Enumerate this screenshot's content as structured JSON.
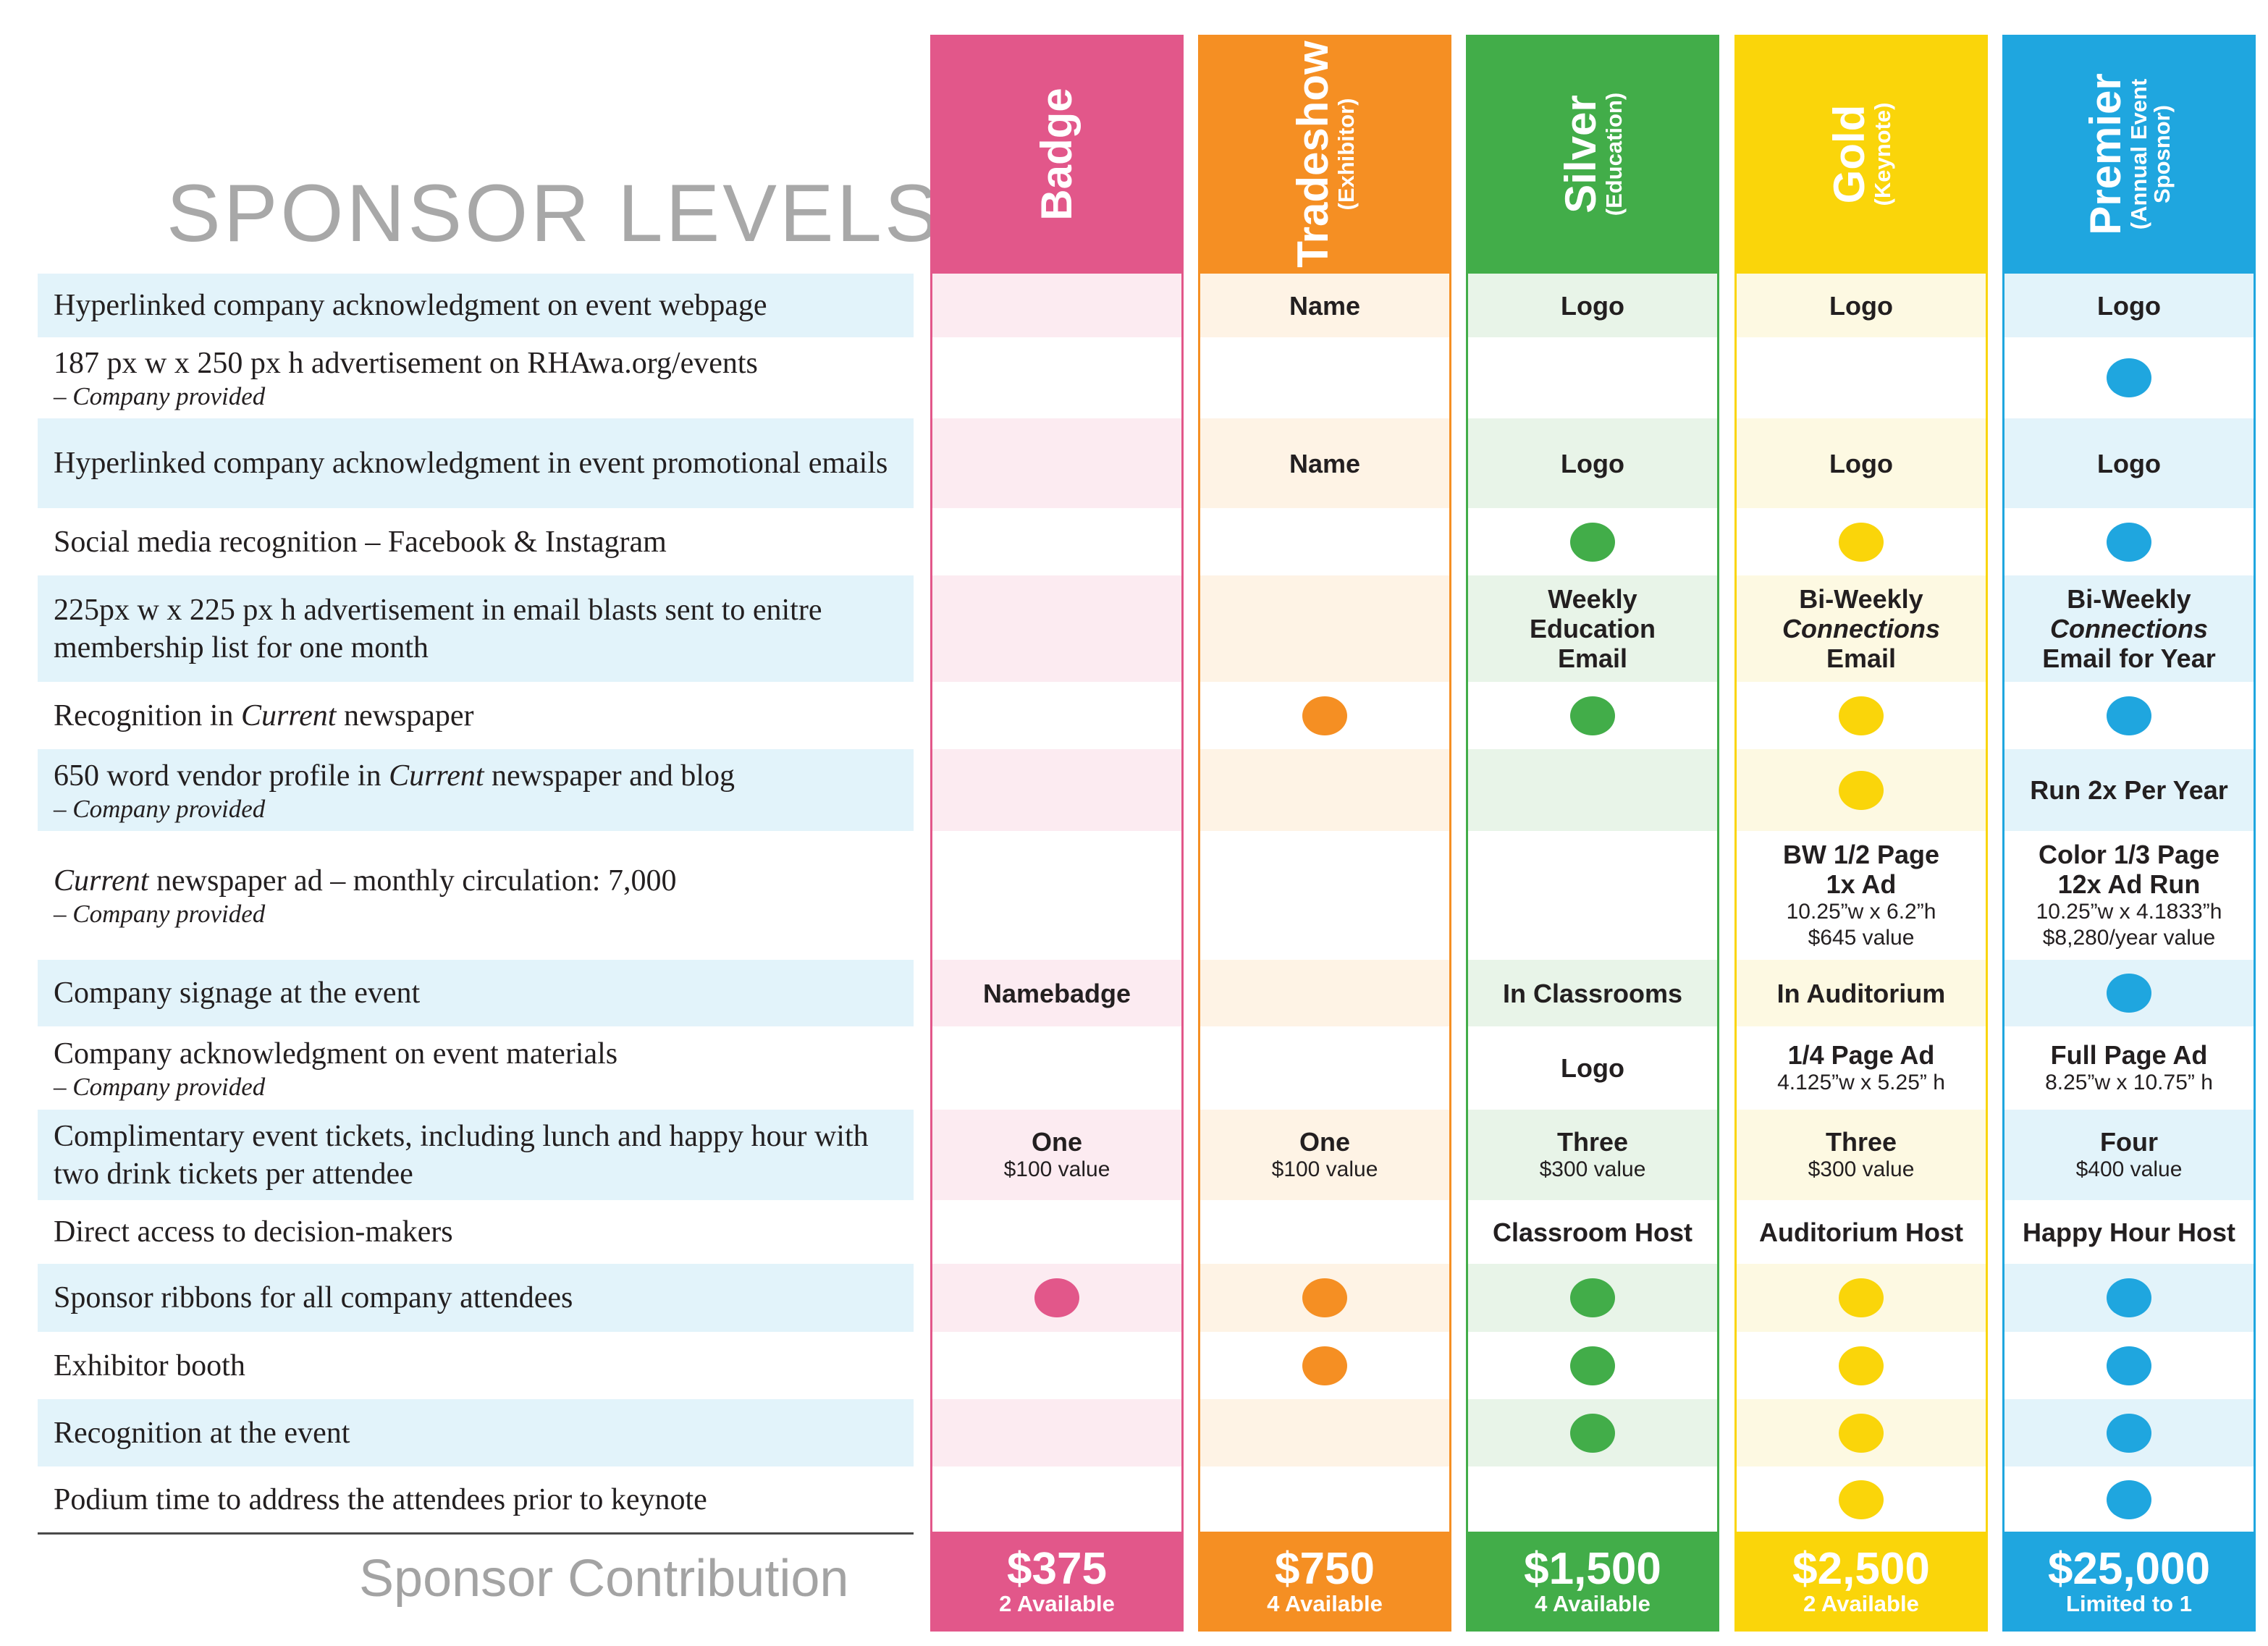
{
  "title": "SPONSOR LEVELS",
  "footer_label": "Sponsor Contribution",
  "colors": {
    "badge": "#e2578a",
    "tradeshow": "#f58f23",
    "silver": "#42ad49",
    "gold": "#fad50a",
    "premier": "#1fa6df",
    "label_band": "#e2f3fa"
  },
  "features": [
    {
      "label": "Hyperlinked company acknowledgment on event webpage",
      "sub": ""
    },
    {
      "label": "187 px w x 250 px h advertisement on RHAwa.org/events",
      "sub": "– Company provided"
    },
    {
      "label": "Hyperlinked company acknowledgment in event promotional emails",
      "sub": ""
    },
    {
      "label": "Social media recognition – Facebook & Instagram",
      "sub": ""
    },
    {
      "label": "225px w x 225 px h advertisement in email blasts sent to enitre membership list for one month",
      "sub": ""
    },
    {
      "label_pre": "Recognition in ",
      "label_em": "Current",
      "label_post": " newspaper",
      "sub": ""
    },
    {
      "label_pre": "650 word vendor profile in ",
      "label_em": "Current",
      "label_post": " newspaper and blog",
      "sub": "– Company provided"
    },
    {
      "label_pre": "",
      "label_em": "Current",
      "label_post": " newspaper ad – monthly circulation: 7,000",
      "sub": "– Company provided"
    },
    {
      "label": "Company signage at the event",
      "sub": ""
    },
    {
      "label": "Company acknowledgment on event materials",
      "sub": "– Company provided"
    },
    {
      "label": "Complimentary event tickets, including lunch and happy hour with two drink tickets per attendee",
      "sub": ""
    },
    {
      "label": "Direct access to decision-makers",
      "sub": ""
    },
    {
      "label": "Sponsor ribbons for all company attendees",
      "sub": ""
    },
    {
      "label": "Exhibitor booth",
      "sub": ""
    },
    {
      "label": "Recognition at the event",
      "sub": ""
    },
    {
      "label": "Podium time to address the attendees prior to keynote",
      "sub": ""
    }
  ],
  "tiers": [
    {
      "key": "badge",
      "name": "Badge",
      "subtitle": "",
      "price": "$375",
      "availability": "2 Available",
      "color": "#e2578a",
      "tint": "#fcebf1",
      "cells": [
        {},
        {},
        {},
        {},
        {},
        {},
        {},
        {},
        {
          "text": "Namebadge"
        },
        {},
        {
          "text": "One",
          "note": "$100 value"
        },
        {},
        {
          "dot": true
        },
        {},
        {},
        {}
      ]
    },
    {
      "key": "tradeshow",
      "name": "Tradeshow",
      "subtitle": "(Exhibitor)",
      "price": "$750",
      "availability": "4 Available",
      "color": "#f58f23",
      "tint": "#fef3e5",
      "cells": [
        {
          "text": "Name"
        },
        {},
        {
          "text": "Name"
        },
        {},
        {},
        {
          "dot": true
        },
        {},
        {},
        {},
        {},
        {
          "text": "One",
          "note": "$100 value"
        },
        {},
        {
          "dot": true
        },
        {
          "dot": true
        },
        {},
        {}
      ]
    },
    {
      "key": "silver",
      "name": "Silver",
      "subtitle": "(Education)",
      "price": "$1,500",
      "availability": "4 Available",
      "color": "#42ad49",
      "tint": "#e8f4e8",
      "cells": [
        {
          "text": "Logo"
        },
        {},
        {
          "text": "Logo"
        },
        {
          "dot": true
        },
        {
          "text": "Weekly",
          "text2": "Education",
          "text3": "Email"
        },
        {
          "dot": true
        },
        {},
        {},
        {
          "text": "In Classrooms"
        },
        {
          "text": "Logo"
        },
        {
          "text": "Three",
          "note": "$300 value"
        },
        {
          "text": "Classroom Host"
        },
        {
          "dot": true
        },
        {
          "dot": true
        },
        {
          "dot": true
        },
        {}
      ]
    },
    {
      "key": "gold",
      "name": "Gold",
      "subtitle": "(Keynote)",
      "price": "$2,500",
      "availability": "2 Available",
      "color": "#fad50a",
      "tint": "#fdf9e2",
      "cells": [
        {
          "text": "Logo"
        },
        {},
        {
          "text": "Logo"
        },
        {
          "dot": true
        },
        {
          "text": "Bi-Weekly",
          "em": "Connections",
          "text3": "Email"
        },
        {
          "dot": true
        },
        {
          "dot": true
        },
        {
          "text": "BW 1/2 Page",
          "text2": "1x Ad",
          "note": "10.25”w  x  6.2”h",
          "note2": "$645 value"
        },
        {
          "text": "In Auditorium"
        },
        {
          "text": "1/4 Page Ad",
          "note": "4.125”w x 5.25” h"
        },
        {
          "text": "Three",
          "note": "$300 value"
        },
        {
          "text": "Auditorium Host"
        },
        {
          "dot": true
        },
        {
          "dot": true
        },
        {
          "dot": true
        },
        {
          "dot": true
        }
      ]
    },
    {
      "key": "premier",
      "name": "Premier",
      "subtitle": "(Annual Event",
      "subtitle2": "Sposnor)",
      "price": "$25,000",
      "availability": "Limited to 1",
      "color": "#1fa6df",
      "tint": "#e2f3fa",
      "cells": [
        {
          "text": "Logo"
        },
        {
          "dot": true
        },
        {
          "text": "Logo"
        },
        {
          "dot": true
        },
        {
          "text": "Bi-Weekly",
          "em": "Connections",
          "text3": "Email for Year"
        },
        {
          "dot": true
        },
        {
          "text": "Run 2x Per Year"
        },
        {
          "text": "Color 1/3 Page",
          "text2": "12x Ad Run",
          "note": "10.25”w x 4.1833”h",
          "note2": "$8,280/year value"
        },
        {
          "dot": true
        },
        {
          "text": "Full Page Ad",
          "note": "8.25”w x 10.75” h"
        },
        {
          "text": "Four",
          "note": "$400 value"
        },
        {
          "text": "Happy Hour Host"
        },
        {
          "dot": true
        },
        {
          "dot": true
        },
        {
          "dot": true
        },
        {
          "dot": true
        }
      ]
    }
  ]
}
